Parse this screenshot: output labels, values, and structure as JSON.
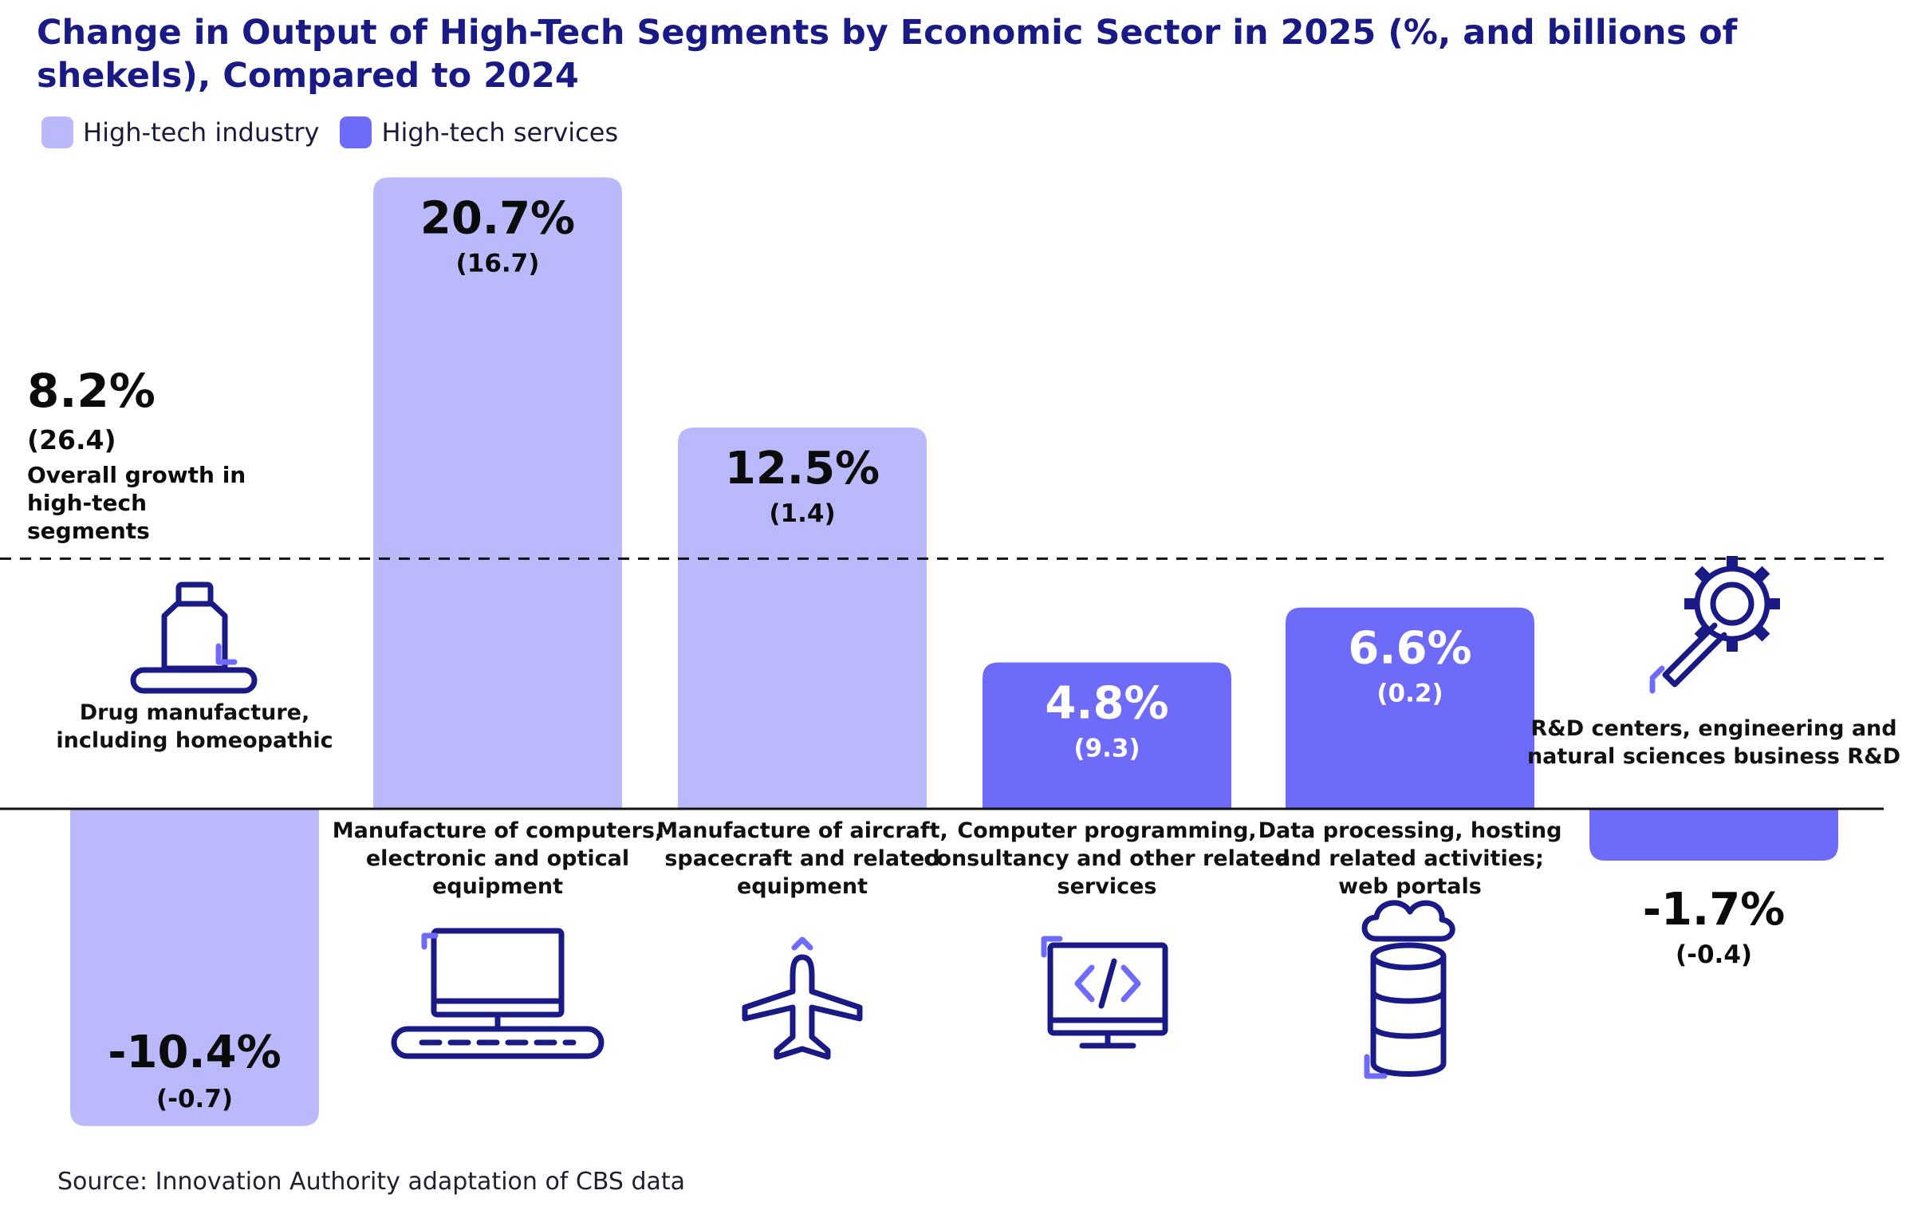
{
  "title": "Change in Output of High-Tech Segments by Economic Sector in 2025 (%, and billions of shekels), Compared to 2024",
  "legend": [
    {
      "label": "High-tech industry",
      "color": "#b9b9fb"
    },
    {
      "label": "High-tech services",
      "color": "#6e6bfb"
    }
  ],
  "overall": {
    "value": "8.2%",
    "amount": "(26.4)",
    "label": "Overall growth in high-tech segments"
  },
  "source": "Source: Innovation Authority adaptation of CBS data",
  "colors": {
    "industry": "#b9b9fb",
    "services": "#6e6bfb",
    "icon": "#1a1a86",
    "accent": "#6e6bfb"
  },
  "chart_data": {
    "type": "bar",
    "reference_line": {
      "value": 8.2,
      "style": "dashed"
    },
    "ylim": [
      -12,
      22
    ],
    "categories": [
      "Drug manufacture, including homeopathic",
      "Manufacture of computers, electronic and optical equipment",
      "Manufacture of aircraft, spacecraft and related equipment",
      "Computer programming, consultancy and other related services",
      "Data processing, hosting and related activities; web portals",
      "R&D centers, engineering and natural sciences business R&D"
    ],
    "values": [
      -10.4,
      20.7,
      12.5,
      4.8,
      6.6,
      -1.7
    ],
    "value_labels": [
      "-10.4%",
      "20.7%",
      "12.5%",
      "4.8%",
      "6.6%",
      "-1.7%"
    ],
    "amount_labels": [
      "(-0.7)",
      "(16.7)",
      "(1.4)",
      "(9.3)",
      "(0.2)",
      "(-0.4)"
    ],
    "amounts_billion_shekels": [
      -0.7,
      16.7,
      1.4,
      9.3,
      0.2,
      -0.4
    ],
    "segment": [
      "High-tech industry",
      "High-tech industry",
      "High-tech industry",
      "High-tech services",
      "High-tech services",
      "High-tech services"
    ],
    "icons": [
      "medicine-bottle-icon",
      "computer-keyboard-icon",
      "airplane-icon",
      "code-monitor-icon",
      "cloud-database-icon",
      "gear-wrench-icon"
    ]
  }
}
